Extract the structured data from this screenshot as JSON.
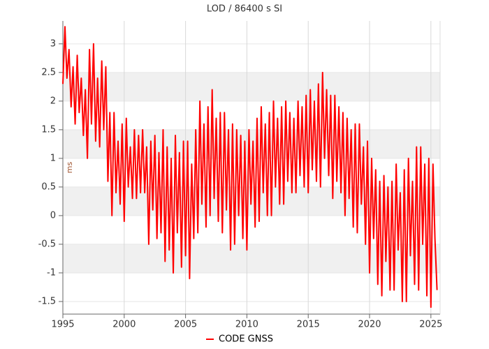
{
  "chart_data": {
    "type": "line",
    "title": "LOD / 86400 s SI",
    "y_label": "ms",
    "xlim": [
      1995,
      2025.75
    ],
    "xticks": [
      1995,
      2000,
      2005,
      2010,
      2015,
      2020,
      2025
    ],
    "ylim": [
      -1.72,
      3.4
    ],
    "yticks": [
      -1.5,
      -1,
      -0.5,
      0,
      0.5,
      1,
      1.5,
      2,
      2.5,
      3
    ],
    "grid": true,
    "alternate_bands": true,
    "legend": "bottom",
    "x": [
      1995.0,
      1995.17,
      1995.33,
      1995.5,
      1995.67,
      1995.83,
      1996.0,
      1996.17,
      1996.33,
      1996.5,
      1996.67,
      1996.83,
      1997.0,
      1997.17,
      1997.33,
      1997.5,
      1997.67,
      1997.83,
      1998.0,
      1998.17,
      1998.33,
      1998.5,
      1998.67,
      1998.83,
      1999.0,
      1999.17,
      1999.33,
      1999.5,
      1999.67,
      1999.83,
      2000.0,
      2000.17,
      2000.33,
      2000.5,
      2000.67,
      2000.83,
      2001.0,
      2001.17,
      2001.33,
      2001.5,
      2001.67,
      2001.83,
      2002.0,
      2002.17,
      2002.33,
      2002.5,
      2002.67,
      2002.83,
      2003.0,
      2003.17,
      2003.33,
      2003.5,
      2003.67,
      2003.83,
      2004.0,
      2004.17,
      2004.33,
      2004.5,
      2004.67,
      2004.83,
      2005.0,
      2005.17,
      2005.33,
      2005.5,
      2005.67,
      2005.83,
      2006.0,
      2006.17,
      2006.33,
      2006.5,
      2006.67,
      2006.83,
      2007.0,
      2007.17,
      2007.33,
      2007.5,
      2007.67,
      2007.83,
      2008.0,
      2008.17,
      2008.33,
      2008.5,
      2008.67,
      2008.83,
      2009.0,
      2009.17,
      2009.33,
      2009.5,
      2009.67,
      2009.83,
      2010.0,
      2010.17,
      2010.33,
      2010.5,
      2010.67,
      2010.83,
      2011.0,
      2011.17,
      2011.33,
      2011.5,
      2011.67,
      2011.83,
      2012.0,
      2012.17,
      2012.33,
      2012.5,
      2012.67,
      2012.83,
      2013.0,
      2013.17,
      2013.33,
      2013.5,
      2013.67,
      2013.83,
      2014.0,
      2014.17,
      2014.33,
      2014.5,
      2014.67,
      2014.83,
      2015.0,
      2015.17,
      2015.33,
      2015.5,
      2015.67,
      2015.83,
      2016.0,
      2016.17,
      2016.33,
      2016.5,
      2016.67,
      2016.83,
      2017.0,
      2017.17,
      2017.33,
      2017.5,
      2017.67,
      2017.83,
      2018.0,
      2018.17,
      2018.33,
      2018.5,
      2018.67,
      2018.83,
      2019.0,
      2019.17,
      2019.33,
      2019.5,
      2019.67,
      2019.83,
      2020.0,
      2020.17,
      2020.33,
      2020.5,
      2020.67,
      2020.83,
      2021.0,
      2021.17,
      2021.33,
      2021.5,
      2021.67,
      2021.83,
      2022.0,
      2022.17,
      2022.33,
      2022.5,
      2022.67,
      2022.83,
      2023.0,
      2023.17,
      2023.33,
      2023.5,
      2023.67,
      2023.83,
      2024.0,
      2024.17,
      2024.33,
      2024.5,
      2024.67,
      2024.83,
      2025.0,
      2025.17,
      2025.33,
      2025.5
    ],
    "series": [
      {
        "name": "CODE GNSS",
        "color": "#ff0000",
        "values": [
          2.3,
          3.3,
          2.4,
          2.9,
          1.9,
          2.6,
          1.6,
          2.8,
          1.8,
          2.4,
          1.4,
          2.2,
          1.0,
          2.9,
          1.6,
          3.0,
          1.3,
          2.4,
          1.2,
          2.7,
          1.5,
          2.6,
          0.6,
          1.8,
          0.0,
          1.8,
          0.4,
          1.3,
          0.2,
          1.6,
          -0.1,
          1.7,
          0.5,
          1.2,
          0.3,
          1.5,
          0.3,
          1.4,
          0.4,
          1.5,
          0.4,
          1.2,
          -0.5,
          1.3,
          0.1,
          1.4,
          -0.4,
          1.1,
          -0.3,
          1.5,
          -0.8,
          1.2,
          -0.6,
          1.0,
          -1.0,
          1.4,
          -0.3,
          1.1,
          -0.9,
          1.3,
          -0.7,
          1.3,
          -1.1,
          0.9,
          -0.4,
          1.5,
          -0.3,
          2.0,
          0.2,
          1.6,
          -0.2,
          1.9,
          0.0,
          2.2,
          0.3,
          1.7,
          -0.1,
          1.8,
          -0.3,
          1.8,
          0.1,
          1.5,
          -0.6,
          1.6,
          -0.5,
          1.5,
          0.0,
          1.4,
          -0.4,
          1.3,
          -0.6,
          1.5,
          0.2,
          1.3,
          -0.2,
          1.7,
          -0.1,
          1.9,
          0.4,
          1.6,
          0.0,
          1.8,
          0.0,
          2.0,
          0.5,
          1.7,
          0.2,
          1.9,
          0.2,
          2.0,
          0.6,
          1.8,
          0.4,
          1.7,
          0.4,
          2.0,
          0.7,
          1.9,
          0.5,
          2.1,
          0.4,
          2.2,
          0.8,
          2.0,
          0.6,
          2.3,
          0.5,
          2.5,
          1.0,
          2.2,
          0.7,
          2.1,
          0.3,
          2.1,
          0.6,
          1.9,
          0.4,
          1.8,
          0.0,
          1.7,
          0.3,
          1.5,
          -0.2,
          1.6,
          -0.3,
          1.6,
          0.2,
          1.2,
          -0.5,
          1.3,
          -1.0,
          1.0,
          -0.4,
          0.8,
          -1.2,
          0.6,
          -1.4,
          0.7,
          -0.8,
          0.5,
          -1.3,
          0.6,
          -1.3,
          0.9,
          -0.6,
          0.4,
          -1.5,
          0.8,
          -1.5,
          1.0,
          -0.7,
          0.6,
          -1.2,
          1.2,
          -1.3,
          1.2,
          -0.5,
          0.9,
          -1.4,
          1.0,
          -1.6,
          0.9,
          -0.4,
          -1.3
        ]
      }
    ]
  }
}
